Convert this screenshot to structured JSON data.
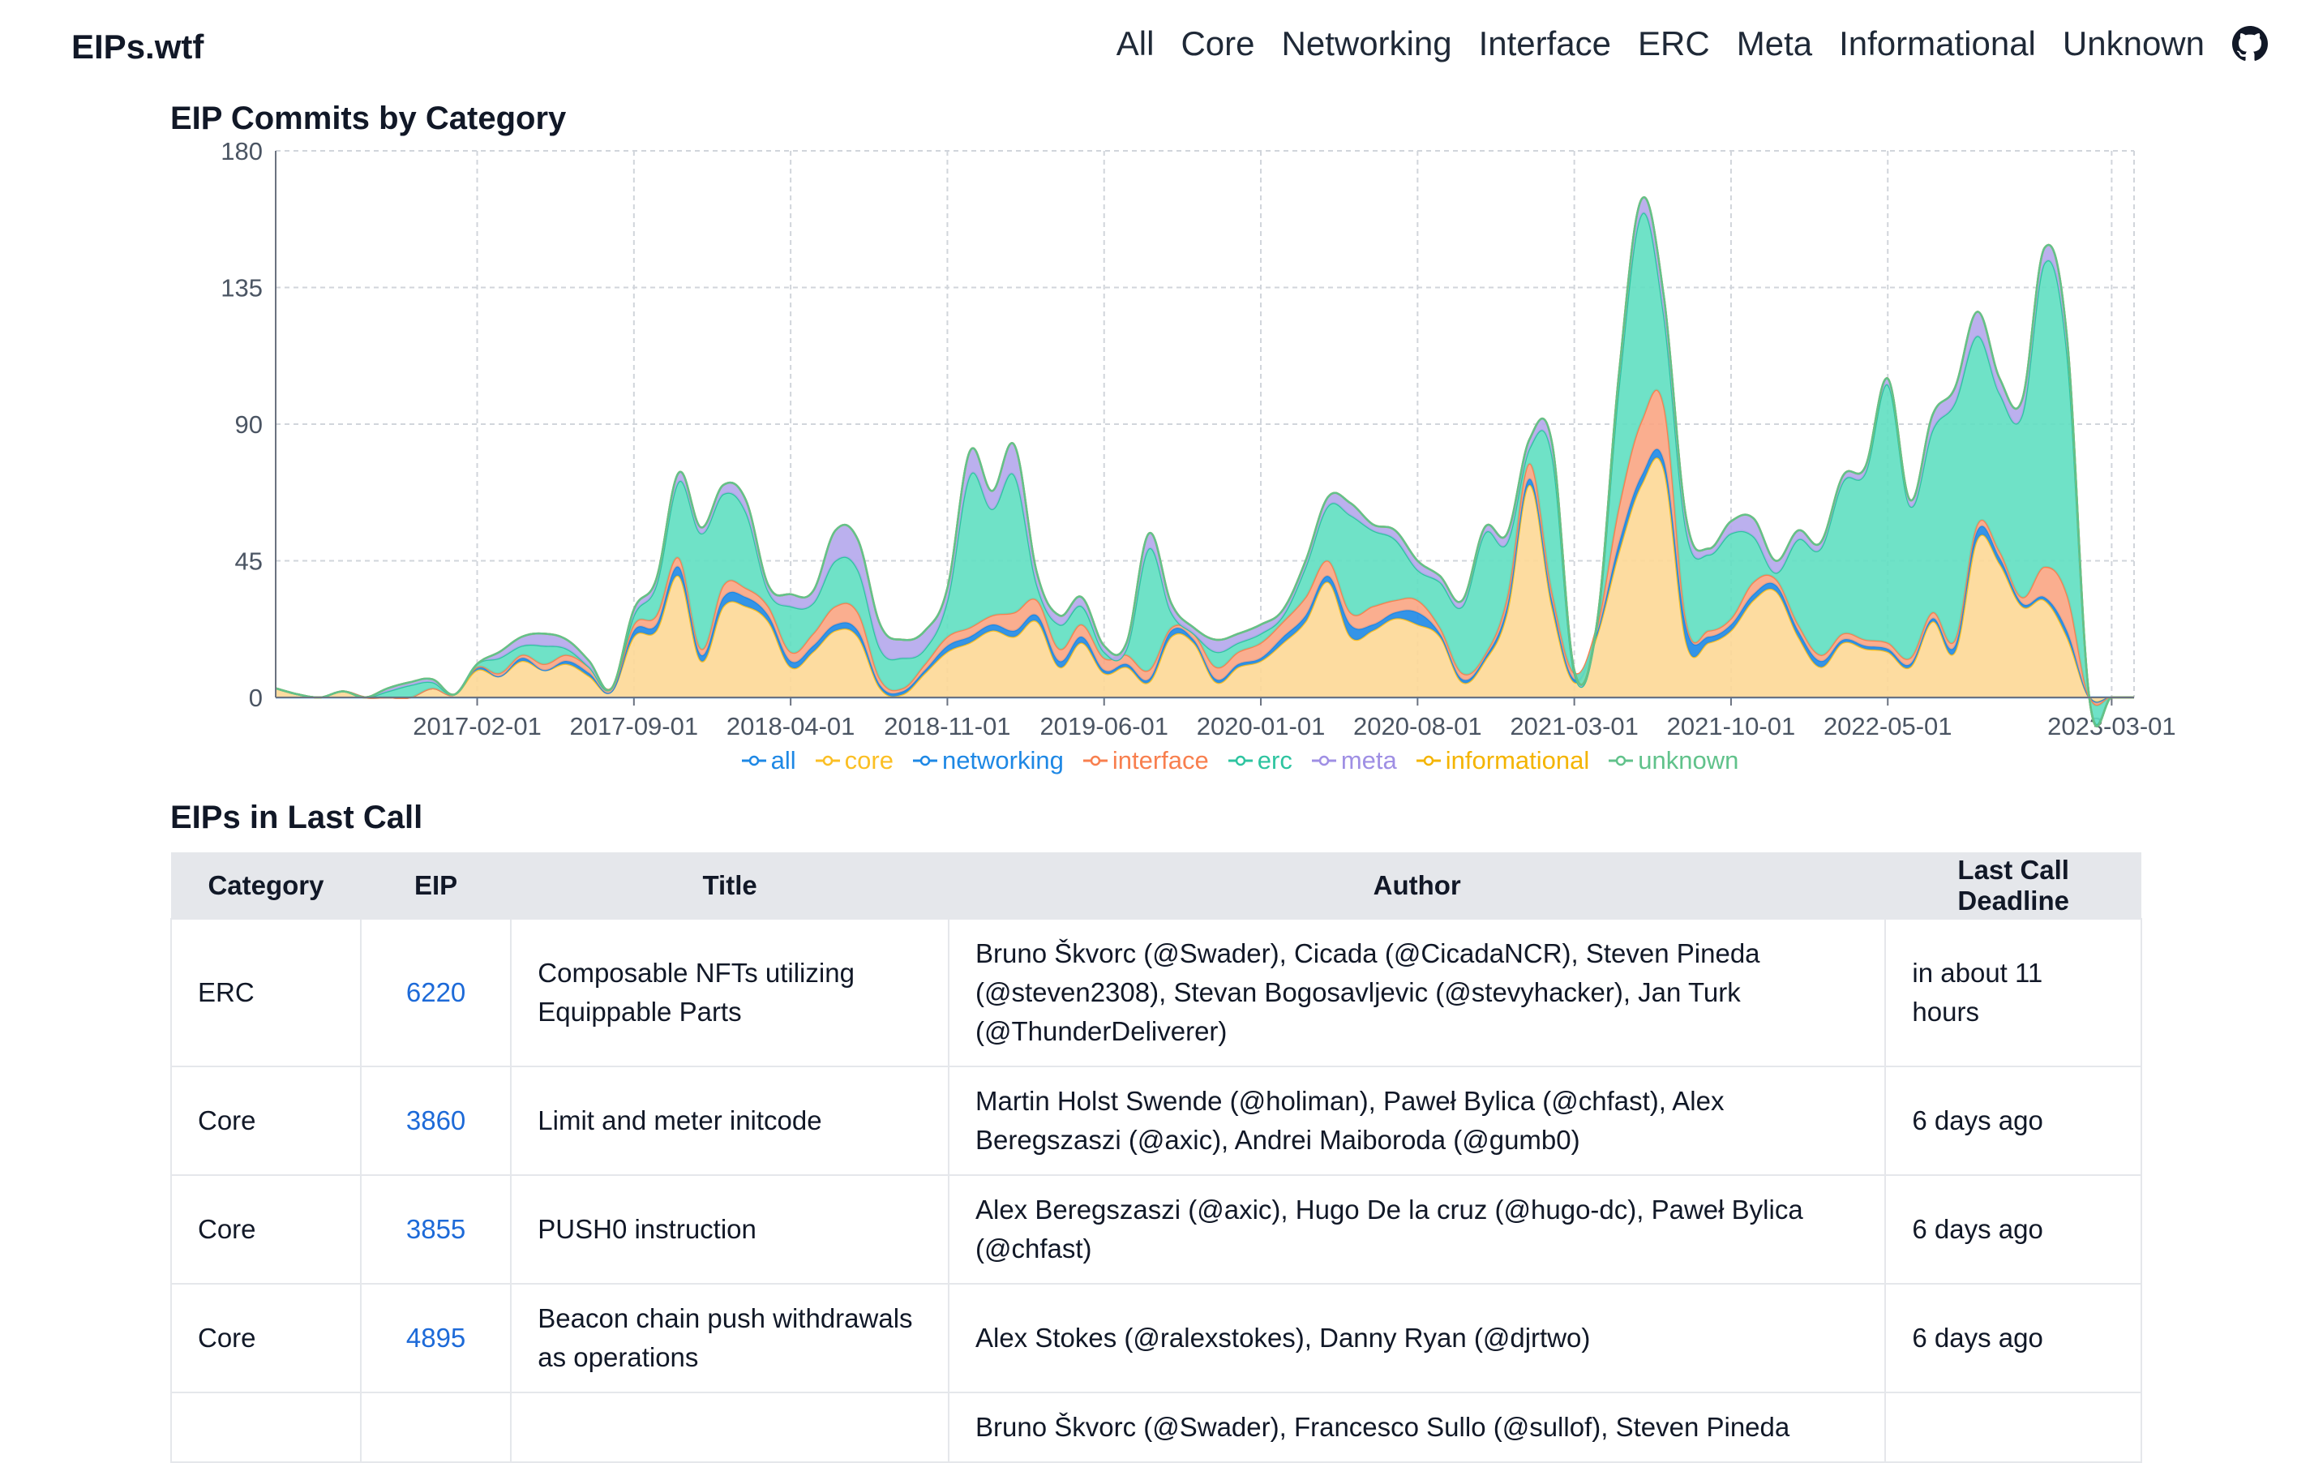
{
  "brand": "EIPs.wtf",
  "nav": [
    "All",
    "Core",
    "Networking",
    "Interface",
    "ERC",
    "Meta",
    "Informational",
    "Unknown"
  ],
  "nav_icon": "github-icon",
  "chart_title": "EIP Commits by Category",
  "chart_data": {
    "type": "area",
    "stacked": true,
    "title": "EIP Commits by Category",
    "ylim": [
      0,
      180
    ],
    "y_ticks": [
      0,
      45,
      90,
      135,
      180
    ],
    "x_ticks": [
      "2017-02-01",
      "2017-09-01",
      "2018-04-01",
      "2018-11-01",
      "2019-06-01",
      "2020-01-01",
      "2020-08-01",
      "2021-03-01",
      "2021-10-01",
      "2022-05-01",
      "2023-03-01"
    ],
    "grid": true,
    "legend": "bottom",
    "x": [
      "2016-05",
      "2016-06",
      "2016-07",
      "2016-08",
      "2016-09",
      "2016-10",
      "2016-11",
      "2016-12",
      "2017-01",
      "2017-02",
      "2017-03",
      "2017-04",
      "2017-05",
      "2017-06",
      "2017-07",
      "2017-08",
      "2017-09",
      "2017-10",
      "2017-11",
      "2017-12",
      "2018-01",
      "2018-02",
      "2018-03",
      "2018-04",
      "2018-05",
      "2018-06",
      "2018-07",
      "2018-08",
      "2018-09",
      "2018-10",
      "2018-11",
      "2018-12",
      "2019-01",
      "2019-02",
      "2019-03",
      "2019-04",
      "2019-05",
      "2019-06",
      "2019-07",
      "2019-08",
      "2019-09",
      "2019-10",
      "2019-11",
      "2019-12",
      "2020-01",
      "2020-02",
      "2020-03",
      "2020-04",
      "2020-05",
      "2020-06",
      "2020-07",
      "2020-08",
      "2020-09",
      "2020-10",
      "2020-11",
      "2020-12",
      "2021-01",
      "2021-02",
      "2021-03",
      "2021-04",
      "2021-05",
      "2021-06",
      "2021-07",
      "2021-08",
      "2021-09",
      "2021-10",
      "2021-11",
      "2021-12",
      "2022-01",
      "2022-02",
      "2022-03",
      "2022-04",
      "2022-05",
      "2022-06",
      "2022-07",
      "2022-08",
      "2022-09",
      "2022-10",
      "2022-11",
      "2022-12",
      "2023-01",
      "2023-02",
      "2023-03",
      "2023-04"
    ],
    "series": [
      {
        "name": "all",
        "color": "#1e88e5",
        "values": [
          0,
          0,
          0,
          0,
          0,
          0,
          0,
          0,
          0,
          0,
          0,
          0,
          0,
          0,
          0,
          0,
          0,
          0,
          0,
          0,
          0,
          0,
          0,
          0,
          0,
          0,
          0,
          0,
          0,
          0,
          0,
          0,
          0,
          0,
          0,
          0,
          0,
          0,
          0,
          0,
          0,
          0,
          0,
          0,
          0,
          0,
          0,
          0,
          0,
          0,
          0,
          0,
          0,
          0,
          0,
          0,
          0,
          0,
          0,
          0,
          0,
          0,
          0,
          0,
          0,
          0,
          0,
          0,
          0,
          0,
          0,
          0,
          0,
          0,
          0,
          0,
          0,
          0,
          0,
          0,
          0,
          0,
          0,
          0
        ]
      },
      {
        "name": "core",
        "color": "#fbbf24",
        "fill": "#fdd896",
        "values": [
          3,
          1,
          0,
          2,
          0,
          0,
          0,
          3,
          1,
          9,
          7,
          12,
          9,
          11,
          7,
          2,
          20,
          22,
          40,
          12,
          30,
          30,
          25,
          10,
          15,
          22,
          20,
          3,
          1,
          8,
          15,
          18,
          22,
          20,
          25,
          10,
          18,
          8,
          10,
          5,
          20,
          18,
          5,
          10,
          12,
          18,
          25,
          38,
          20,
          22,
          26,
          24,
          20,
          5,
          12,
          28,
          70,
          30,
          5,
          20,
          48,
          70,
          75,
          18,
          18,
          22,
          32,
          35,
          20,
          10,
          18,
          16,
          15,
          10,
          25,
          15,
          52,
          44,
          30,
          32,
          20,
          0,
          0,
          0
        ]
      },
      {
        "name": "networking",
        "color": "#1e88e5",
        "values": [
          0,
          0,
          0,
          0,
          0,
          0,
          0,
          0,
          0,
          1,
          0,
          1,
          0,
          1,
          1,
          0,
          2,
          2,
          3,
          2,
          3,
          3,
          2,
          2,
          2,
          2,
          2,
          1,
          1,
          1,
          2,
          2,
          2,
          2,
          2,
          2,
          2,
          1,
          1,
          1,
          2,
          1,
          1,
          1,
          1,
          2,
          2,
          2,
          4,
          2,
          2,
          4,
          1,
          1,
          1,
          2,
          2,
          2,
          1,
          1,
          3,
          3,
          3,
          5,
          2,
          2,
          2,
          2,
          2,
          2,
          1,
          1,
          1,
          1,
          1,
          2,
          3,
          2,
          1,
          1,
          2,
          0,
          0,
          0
        ]
      },
      {
        "name": "interface",
        "color": "#f87f4e",
        "fill": "#f9a583",
        "values": [
          0,
          0,
          0,
          0,
          0,
          0,
          0,
          0,
          0,
          0,
          1,
          1,
          2,
          2,
          2,
          1,
          2,
          3,
          3,
          2,
          4,
          3,
          3,
          3,
          4,
          6,
          6,
          2,
          1,
          2,
          3,
          3,
          3,
          6,
          5,
          4,
          4,
          4,
          3,
          3,
          1,
          2,
          4,
          4,
          5,
          5,
          6,
          5,
          4,
          6,
          4,
          4,
          2,
          2,
          1,
          3,
          5,
          3,
          2,
          2,
          12,
          18,
          18,
          2,
          2,
          2,
          4,
          2,
          2,
          2,
          2,
          2,
          2,
          2,
          2,
          2,
          2,
          2,
          2,
          10,
          12,
          0,
          0,
          0
        ]
      },
      {
        "name": "erc",
        "color": "#2ec4a0",
        "fill": "#5fdfc1",
        "values": [
          0,
          0,
          0,
          0,
          0,
          2,
          4,
          2,
          0,
          1,
          5,
          3,
          6,
          2,
          0,
          0,
          3,
          10,
          25,
          38,
          30,
          25,
          5,
          15,
          10,
          15,
          14,
          10,
          10,
          5,
          12,
          50,
          35,
          45,
          5,
          8,
          6,
          2,
          2,
          40,
          5,
          0,
          5,
          3,
          3,
          2,
          10,
          18,
          32,
          25,
          20,
          10,
          15,
          22,
          40,
          18,
          5,
          45,
          0,
          0,
          40,
          68,
          30,
          30,
          25,
          28,
          15,
          2,
          28,
          35,
          50,
          55,
          85,
          50,
          60,
          78,
          62,
          52,
          60,
          100,
          80,
          0,
          0,
          0
        ]
      },
      {
        "name": "meta",
        "color": "#9f8fe4",
        "fill": "#b4a7ec",
        "values": [
          0,
          0,
          0,
          0,
          0,
          1,
          1,
          1,
          0,
          0,
          2,
          3,
          4,
          3,
          2,
          0,
          2,
          2,
          3,
          2,
          3,
          4,
          2,
          4,
          4,
          10,
          10,
          8,
          6,
          6,
          4,
          8,
          6,
          10,
          4,
          3,
          3,
          2,
          2,
          5,
          3,
          2,
          4,
          3,
          3,
          2,
          2,
          3,
          4,
          2,
          3,
          3,
          2,
          2,
          2,
          3,
          3,
          4,
          1,
          1,
          4,
          5,
          6,
          4,
          2,
          4,
          6,
          4,
          3,
          2,
          2,
          2,
          2,
          2,
          5,
          5,
          8,
          5,
          5,
          5,
          5,
          0,
          0,
          0
        ]
      },
      {
        "name": "informational",
        "color": "#f4b400",
        "values": [
          0,
          0,
          0,
          0,
          0,
          0,
          0,
          0,
          0,
          0,
          0,
          0,
          0,
          0,
          0,
          0,
          0,
          0,
          0,
          0,
          0,
          0,
          0,
          0,
          0,
          0,
          0,
          0,
          0,
          0,
          0,
          0,
          0,
          0,
          0,
          0,
          0,
          0,
          0,
          0,
          0,
          0,
          0,
          0,
          0,
          0,
          0,
          0,
          0,
          0,
          0,
          0,
          0,
          0,
          0,
          0,
          0,
          0,
          0,
          0,
          0,
          0,
          0,
          0,
          0,
          0,
          0,
          0,
          0,
          0,
          0,
          0,
          0,
          0,
          0,
          0,
          0,
          0,
          0,
          0,
          0,
          0,
          0,
          0
        ]
      },
      {
        "name": "unknown",
        "color": "#61c28b",
        "values": [
          0,
          0,
          0,
          0,
          0,
          0,
          0,
          0,
          0,
          0,
          0,
          0,
          0,
          0,
          0,
          0,
          0,
          0,
          0,
          0,
          0,
          0,
          0,
          0,
          0,
          0,
          0,
          0,
          0,
          0,
          0,
          0,
          0,
          0,
          0,
          0,
          0,
          0,
          0,
          0,
          0,
          0,
          0,
          0,
          0,
          0,
          0,
          0,
          0,
          0,
          0,
          0,
          0,
          0,
          0,
          0,
          0,
          0,
          0,
          0,
          0,
          0,
          0,
          0,
          0,
          0,
          0,
          0,
          0,
          0,
          0,
          0,
          0,
          0,
          0,
          0,
          0,
          0,
          0,
          0,
          0,
          0,
          0,
          0
        ]
      }
    ]
  },
  "table_title": "EIPs in Last Call",
  "table": {
    "headers": [
      "Category",
      "EIP",
      "Title",
      "Author",
      "Last Call Deadline"
    ],
    "rows": [
      {
        "category": "ERC",
        "eip": "6220",
        "title": "Composable NFTs utilizing Equippable Parts",
        "author": "Bruno Škvorc (@Swader), Cicada (@CicadaNCR), Steven Pineda (@steven2308), Stevan Bogosavljevic (@stevyhacker), Jan Turk (@ThunderDeliverer)",
        "deadline": "in about 11 hours"
      },
      {
        "category": "Core",
        "eip": "3860",
        "title": "Limit and meter initcode",
        "author": "Martin Holst Swende (@holiman), Paweł Bylica (@chfast), Alex Beregszaszi (@axic), Andrei Maiboroda (@gumb0)",
        "deadline": "6 days ago"
      },
      {
        "category": "Core",
        "eip": "3855",
        "title": "PUSH0 instruction",
        "author": "Alex Beregszaszi (@axic), Hugo De la cruz (@hugo-dc), Paweł Bylica (@chfast)",
        "deadline": "6 days ago"
      },
      {
        "category": "Core",
        "eip": "4895",
        "title": "Beacon chain push withdrawals as operations",
        "author": "Alex Stokes (@ralexstokes), Danny Ryan (@djrtwo)",
        "deadline": "6 days ago"
      },
      {
        "category": "",
        "eip": "",
        "title": "",
        "author": "Bruno Škvorc (@Swader), Francesco Sullo (@sullof), Steven Pineda",
        "deadline": ""
      }
    ]
  }
}
